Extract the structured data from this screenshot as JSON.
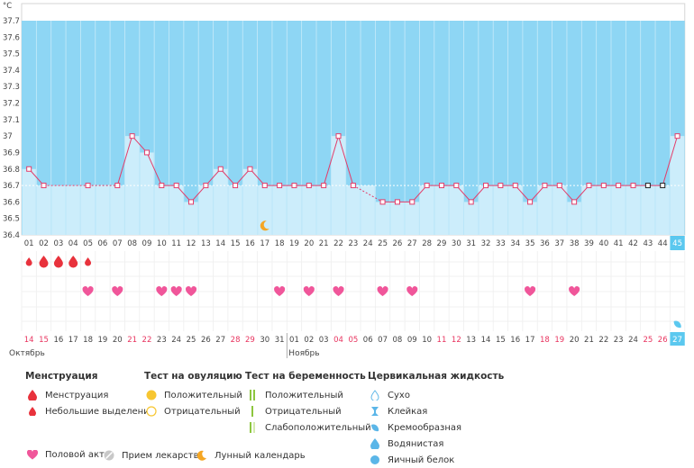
{
  "chart_data": {
    "type": "line",
    "ylabel": "°C",
    "yticks": [
      "37.7",
      "37.6",
      "37.5",
      "37.4",
      "37.3",
      "37.2",
      "37.1",
      "37",
      "36.9",
      "36.8",
      "36.7",
      "36.6",
      "36.5",
      "36.4"
    ],
    "ylim": [
      36.4,
      37.7
    ],
    "cycle_days": [
      "01",
      "02",
      "03",
      "04",
      "05",
      "06",
      "07",
      "08",
      "09",
      "10",
      "11",
      "12",
      "13",
      "14",
      "15",
      "16",
      "17",
      "18",
      "19",
      "20",
      "21",
      "22",
      "23",
      "24",
      "25",
      "26",
      "27",
      "28",
      "29",
      "30",
      "31",
      "32",
      "33",
      "34",
      "35",
      "36",
      "37",
      "38",
      "39",
      "40",
      "41",
      "42",
      "43",
      "44",
      "45"
    ],
    "current_day": "45",
    "temperatures": [
      36.8,
      36.7,
      null,
      null,
      36.7,
      null,
      36.7,
      37.0,
      36.9,
      36.7,
      36.7,
      36.6,
      36.7,
      36.8,
      36.7,
      36.8,
      36.7,
      36.7,
      36.7,
      36.7,
      36.7,
      37.0,
      36.7,
      null,
      36.6,
      36.6,
      36.6,
      36.7,
      36.7,
      36.7,
      36.6,
      36.7,
      36.7,
      36.7,
      36.6,
      36.7,
      36.7,
      36.6,
      36.7,
      36.7,
      36.7,
      36.7,
      36.7,
      36.7,
      37.0
    ],
    "coverline": 36.7,
    "dates": [
      "14",
      "15",
      "16",
      "17",
      "18",
      "19",
      "20",
      "21",
      "22",
      "23",
      "24",
      "25",
      "26",
      "27",
      "28",
      "29",
      "30",
      "31",
      "01",
      "02",
      "03",
      "04",
      "05",
      "06",
      "07",
      "08",
      "09",
      "10",
      "11",
      "12",
      "13",
      "14",
      "15",
      "16",
      "17",
      "18",
      "19",
      "20",
      "21",
      "22",
      "23",
      "24",
      "25",
      "26",
      "27"
    ],
    "weekend_flags": [
      1,
      1,
      0,
      0,
      0,
      0,
      0,
      1,
      1,
      0,
      0,
      0,
      0,
      0,
      1,
      1,
      0,
      0,
      0,
      0,
      0,
      1,
      1,
      0,
      0,
      0,
      0,
      0,
      1,
      1,
      0,
      0,
      0,
      0,
      0,
      1,
      1,
      0,
      0,
      0,
      0,
      0,
      1,
      1,
      0
    ],
    "months": [
      {
        "label": "Октябрь",
        "start_index": 0
      },
      {
        "label": "Ноябрь",
        "start_index": 18
      }
    ],
    "menstruation": [
      {
        "day_index": 0,
        "type": "light"
      },
      {
        "day_index": 1,
        "type": "heavy"
      },
      {
        "day_index": 2,
        "type": "heavy"
      },
      {
        "day_index": 3,
        "type": "heavy"
      },
      {
        "day_index": 4,
        "type": "light"
      }
    ],
    "intercourse_days": [
      4,
      6,
      9,
      10,
      11,
      17,
      19,
      21,
      24,
      26,
      34,
      37
    ],
    "moon_day_index": 16,
    "fluid_day_index": 44,
    "colors": {
      "plot_bg": "#8ed6f4",
      "bar": "#ccedfb",
      "line": "#e33d6a",
      "accent": "#5bc8ef",
      "heart": "#f0569a",
      "drop": "#e8323c",
      "weekend": "#e8345f"
    }
  },
  "legend": {
    "menstruation": {
      "title": "Менструация",
      "items": [
        "Менструация",
        "Небольшие выделения"
      ]
    },
    "ovulation": {
      "title": "Тест на овуляцию",
      "items": [
        "Положительный",
        "Отрицательный"
      ]
    },
    "pregnancy": {
      "title": "Тест на беременность",
      "items": [
        "Положительный",
        "Отрицательный",
        "Слабоположительный"
      ]
    },
    "fluid": {
      "title": "Цервикальная жидкость",
      "items": [
        "Сухо",
        "Клейкая",
        "Кремообразная",
        "Водянистая",
        "Яичный белок"
      ]
    },
    "bottom": [
      "Половой акт",
      "Прием лекарств",
      "Лунный календарь"
    ]
  }
}
